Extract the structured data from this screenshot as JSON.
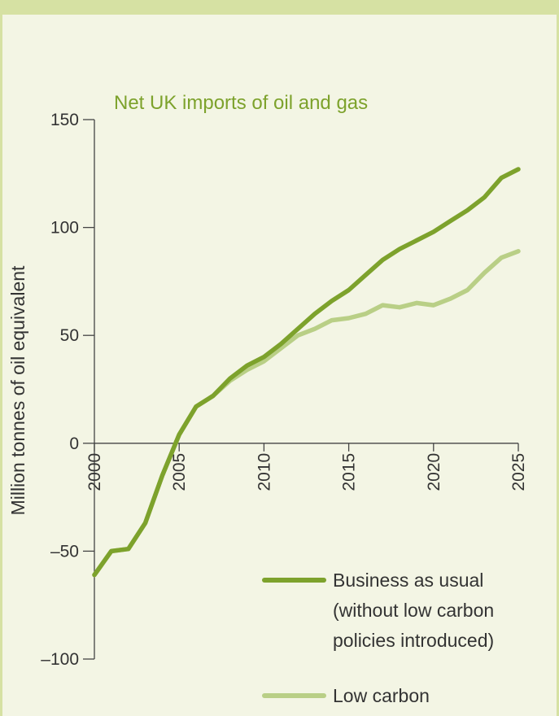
{
  "chart_data": {
    "type": "line",
    "title": "Net UK imports of oil and gas",
    "ylabel": "Million tonnes of oil equivalent",
    "xlabel": "",
    "x": [
      2000,
      2001,
      2002,
      2003,
      2004,
      2005,
      2006,
      2007,
      2008,
      2009,
      2010,
      2011,
      2012,
      2013,
      2014,
      2015,
      2016,
      2017,
      2018,
      2019,
      2020,
      2021,
      2022,
      2023,
      2024,
      2025
    ],
    "xticks": [
      "2000",
      "2005",
      "2010",
      "2015",
      "2020",
      "2025"
    ],
    "yticks": [
      "150",
      "100",
      "50",
      "0",
      "–50",
      "–100"
    ],
    "ylim": [
      -100,
      150
    ],
    "xlim": [
      2000,
      2025
    ],
    "grid": false,
    "series": [
      {
        "name": "Business as usual (without low carbon policies introduced)",
        "legend_lines": [
          "Business as usual",
          "(without low carbon",
          "policies introduced)"
        ],
        "color": "#7da22c",
        "values": [
          -61,
          -50,
          -49,
          -37,
          -15,
          4,
          17,
          22,
          30,
          36,
          40,
          46,
          53,
          60,
          66,
          71,
          78,
          85,
          90,
          94,
          98,
          103,
          108,
          114,
          123,
          127
        ]
      },
      {
        "name": "Low carbon",
        "legend_lines": [
          "Low carbon"
        ],
        "color": "#b9cf86",
        "values": [
          -61,
          -50,
          -49,
          -37,
          -15,
          4,
          17,
          22,
          29,
          34,
          38,
          44,
          50,
          53,
          57,
          58,
          60,
          64,
          63,
          65,
          64,
          67,
          71,
          79,
          86,
          89
        ]
      }
    ],
    "legend_position": "bottom-right"
  }
}
